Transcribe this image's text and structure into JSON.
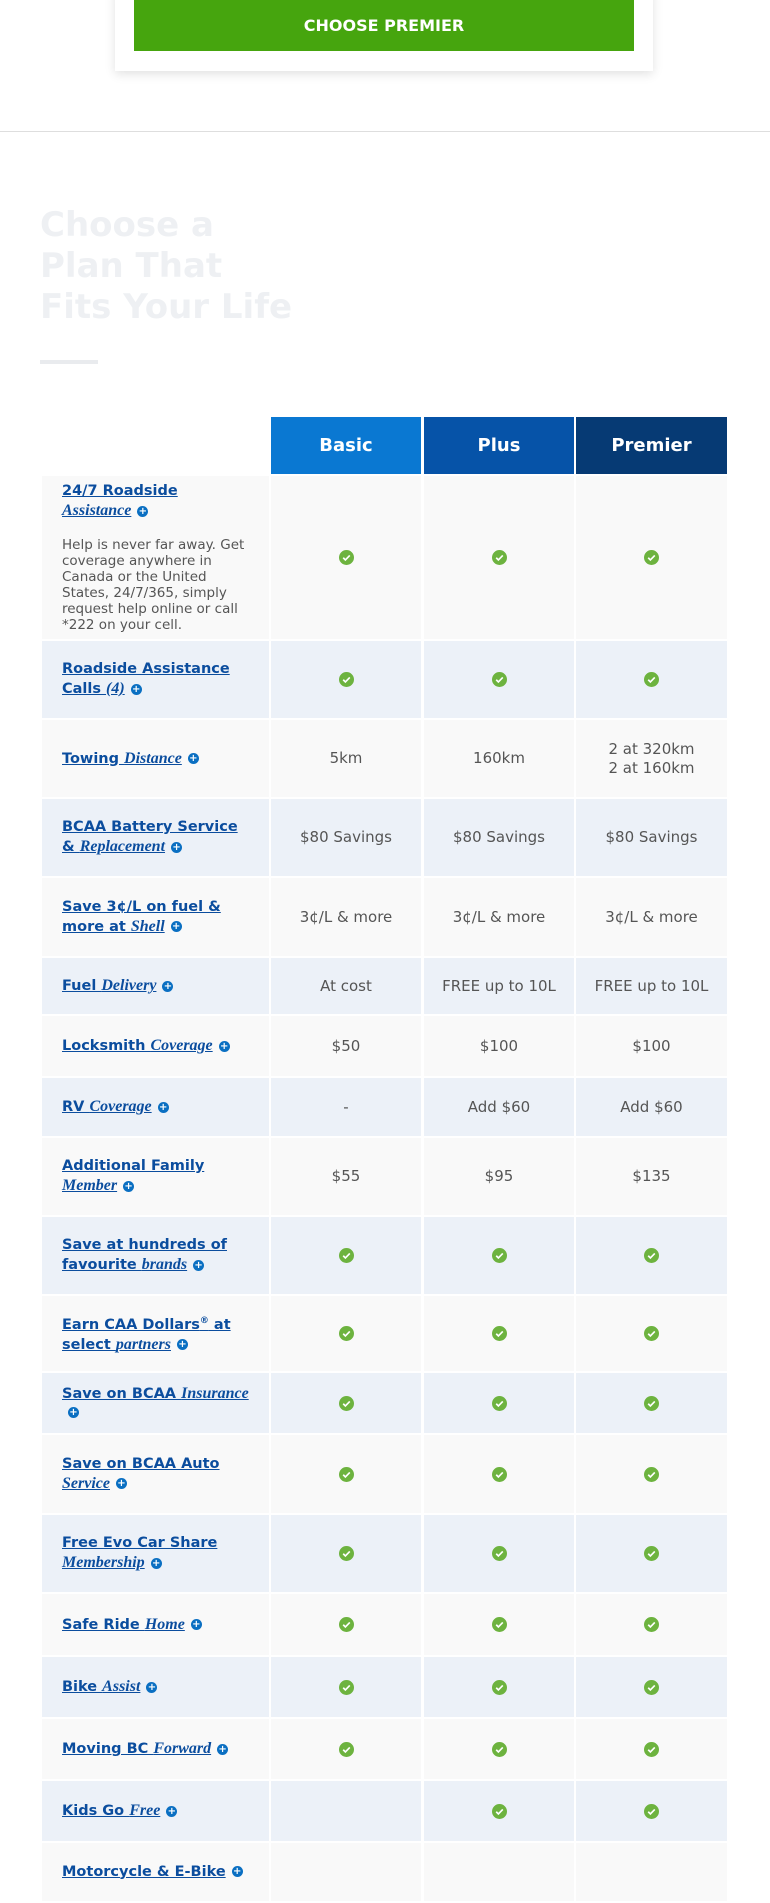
{
  "top_button": "CHOOSE PREMIER",
  "heading": "Choose a Plan That Fits Your Life",
  "plans": [
    {
      "name": "Basic",
      "color": "#0a78d2"
    },
    {
      "name": "Plus",
      "color": "#0653a8"
    },
    {
      "name": "Premier",
      "color": "#063a74"
    }
  ],
  "rows": [
    {
      "label": [
        {
          "text": "24/7 Roadside "
        },
        {
          "text": "Assistance",
          "em": true
        }
      ],
      "description": "Help is never far away. Get coverage anywhere in Canada or the United States, 24/7/365, simply request help online or call *222 on your cell.",
      "cells": [
        true,
        true,
        true
      ]
    },
    {
      "label": [
        {
          "text": "Roadside Assistance Calls "
        },
        {
          "text": "(4)",
          "em": true
        }
      ],
      "cells": [
        true,
        true,
        true
      ]
    },
    {
      "label": [
        {
          "text": "Towing "
        },
        {
          "text": "Distance",
          "em": true
        }
      ],
      "cells": [
        "5km",
        "160km",
        [
          "2 at 320km",
          "2 at 160km"
        ]
      ]
    },
    {
      "label": [
        {
          "text": "BCAA Battery Service & "
        },
        {
          "text": "Replacement",
          "em": true
        }
      ],
      "cells": [
        "$80 Savings",
        "$80 Savings",
        "$80 Savings"
      ]
    },
    {
      "label": [
        {
          "text": "Save 3¢/L on fuel & more at "
        },
        {
          "text": "Shell",
          "em": true
        }
      ],
      "cells": [
        "3¢/L & more",
        "3¢/L & more",
        "3¢/L & more"
      ]
    },
    {
      "label": [
        {
          "text": "Fuel "
        },
        {
          "text": "Delivery",
          "em": true
        }
      ],
      "cells": [
        "At cost",
        "FREE up to 10L",
        "FREE up to 10L"
      ]
    },
    {
      "label": [
        {
          "text": "Locksmith "
        },
        {
          "text": "Coverage",
          "em": true
        }
      ],
      "cells": [
        "$50",
        "$100",
        "$100"
      ]
    },
    {
      "label": [
        {
          "text": "RV "
        },
        {
          "text": "Coverage",
          "em": true
        }
      ],
      "cells": [
        "-",
        "Add $60",
        "Add $60"
      ]
    },
    {
      "label": [
        {
          "text": "Additional Family "
        },
        {
          "text": "Member",
          "em": true
        }
      ],
      "cells": [
        "$55",
        "$95",
        "$135"
      ]
    },
    {
      "label": [
        {
          "text": "Save at hundreds of favourite "
        },
        {
          "text": "brands",
          "em": true
        }
      ],
      "cells": [
        true,
        true,
        true
      ]
    },
    {
      "label": [
        {
          "text": "Earn CAA Dollars"
        },
        {
          "text": "®",
          "sup": true
        },
        {
          "text": " at select "
        },
        {
          "text": "partners",
          "em": true
        }
      ],
      "cells": [
        true,
        true,
        true
      ]
    },
    {
      "label": [
        {
          "text": "Save on BCAA "
        },
        {
          "text": "Insurance",
          "em": true
        }
      ],
      "cells": [
        true,
        true,
        true
      ]
    },
    {
      "label": [
        {
          "text": "Save on BCAA Auto "
        },
        {
          "text": "Service",
          "em": true
        }
      ],
      "cells": [
        true,
        true,
        true
      ]
    },
    {
      "label": [
        {
          "text": "Free Evo Car Share "
        },
        {
          "text": "Membership",
          "em": true
        }
      ],
      "cells": [
        true,
        true,
        true
      ]
    },
    {
      "label": [
        {
          "text": "Safe Ride "
        },
        {
          "text": "Home",
          "em": true
        }
      ],
      "cells": [
        true,
        true,
        true
      ]
    },
    {
      "label": [
        {
          "text": "Bike "
        },
        {
          "text": "Assist",
          "em": true
        }
      ],
      "cells": [
        true,
        true,
        true
      ]
    },
    {
      "label": [
        {
          "text": "Moving BC "
        },
        {
          "text": "Forward",
          "em": true
        }
      ],
      "cells": [
        true,
        true,
        true
      ]
    },
    {
      "label": [
        {
          "text": "Kids Go "
        },
        {
          "text": "Free",
          "em": true
        }
      ],
      "cells": [
        null,
        true,
        true
      ]
    },
    {
      "label": [
        {
          "text": "Motorcycle & E-Bike"
        }
      ],
      "cells": [
        null,
        null,
        null
      ]
    }
  ]
}
